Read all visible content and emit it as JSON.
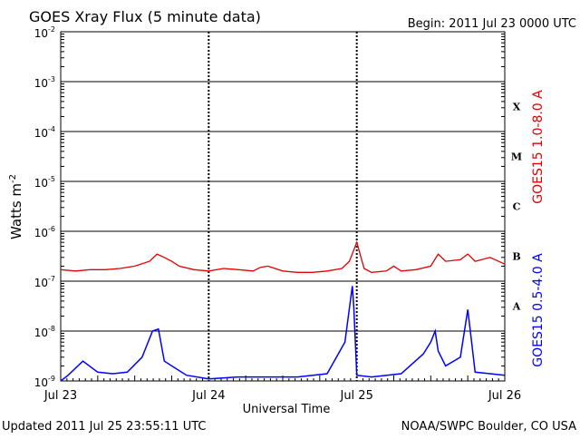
{
  "header": {
    "title": "GOES Xray Flux (5 minute data)",
    "begin": "Begin:  2011 Jul 23 0000 UTC"
  },
  "footer": {
    "updated": "Updated 2011 Jul 25 23:55:11 UTC",
    "source": "NOAA/SWPC Boulder, CO USA"
  },
  "colors": {
    "long_channel": "#e00000",
    "short_channel": "#0000ff",
    "axis": "#000000",
    "gridline": "#000000"
  },
  "chart_data": {
    "type": "line",
    "title": "GOES Xray Flux (5 minute data)",
    "xlabel": "Universal Time",
    "ylabel": "Watts m",
    "ylabel_sup": "-2",
    "yscale": "log",
    "ylim": [
      1e-09,
      0.01
    ],
    "xlim_days": [
      0,
      3
    ],
    "x_unit": "days since 2011 Jul 23 0000 UTC",
    "x_ticks": [
      {
        "value": 0,
        "label": "Jul 23"
      },
      {
        "value": 1,
        "label": "Jul 24"
      },
      {
        "value": 2,
        "label": "Jul 25"
      },
      {
        "value": 3,
        "label": "Jul 26"
      }
    ],
    "y_ticks": [
      {
        "value": 0.01,
        "base": "10",
        "exp": "-2"
      },
      {
        "value": 0.001,
        "base": "10",
        "exp": "-3"
      },
      {
        "value": 0.0001,
        "base": "10",
        "exp": "-4"
      },
      {
        "value": 1e-05,
        "base": "10",
        "exp": "-5"
      },
      {
        "value": 1e-06,
        "base": "10",
        "exp": "-6"
      },
      {
        "value": 1e-07,
        "base": "10",
        "exp": "-7"
      },
      {
        "value": 1e-08,
        "base": "10",
        "exp": "-8"
      },
      {
        "value": 1e-09,
        "base": "10",
        "exp": "-9"
      }
    ],
    "flare_classes": [
      {
        "label": "X",
        "lower": 0.0001,
        "upper": 0.001
      },
      {
        "label": "M",
        "lower": 1e-05,
        "upper": 0.0001
      },
      {
        "label": "C",
        "lower": 1e-06,
        "upper": 1e-05
      },
      {
        "label": "B",
        "lower": 1e-07,
        "upper": 1e-06
      },
      {
        "label": "A",
        "lower": 1e-08,
        "upper": 1e-07
      }
    ],
    "grid": "horizontal lines at each decade; dashed vertical lines at day boundaries",
    "series": [
      {
        "name": "GOES15 1.0-8.0 A",
        "color": "#e00000",
        "x": [
          0,
          0.1,
          0.2,
          0.3,
          0.4,
          0.5,
          0.6,
          0.65,
          0.7,
          0.75,
          0.8,
          0.9,
          1.0,
          1.1,
          1.2,
          1.3,
          1.35,
          1.4,
          1.5,
          1.6,
          1.7,
          1.8,
          1.9,
          1.95,
          2.0,
          2.05,
          2.1,
          2.2,
          2.25,
          2.3,
          2.4,
          2.5,
          2.55,
          2.6,
          2.7,
          2.75,
          2.8,
          2.9,
          3.0
        ],
        "y": [
          1.7e-07,
          1.6e-07,
          1.7e-07,
          1.7e-07,
          1.8e-07,
          2e-07,
          2.5e-07,
          3.5e-07,
          3e-07,
          2.5e-07,
          2e-07,
          1.7e-07,
          1.6e-07,
          1.8e-07,
          1.7e-07,
          1.6e-07,
          1.9e-07,
          2e-07,
          1.6e-07,
          1.5e-07,
          1.5e-07,
          1.6e-07,
          1.8e-07,
          2.5e-07,
          6e-07,
          1.8e-07,
          1.5e-07,
          1.6e-07,
          2e-07,
          1.6e-07,
          1.7e-07,
          2e-07,
          3.5e-07,
          2.5e-07,
          2.7e-07,
          3.5e-07,
          2.5e-07,
          3e-07,
          2.2e-07
        ]
      },
      {
        "name": "GOES15 0.5-4.0 A",
        "color": "#0000ff",
        "x": [
          0,
          0.05,
          0.15,
          0.25,
          0.35,
          0.45,
          0.55,
          0.62,
          0.66,
          0.7,
          0.75,
          0.85,
          1.0,
          1.2,
          1.4,
          1.6,
          1.8,
          1.92,
          1.97,
          1.98,
          2.0,
          2.1,
          2.3,
          2.45,
          2.5,
          2.53,
          2.55,
          2.6,
          2.7,
          2.75,
          2.8,
          2.9,
          3.0
        ],
        "y": [
          1e-09,
          1.3e-09,
          2.5e-09,
          1.5e-09,
          1.4e-09,
          1.5e-09,
          3e-09,
          1e-08,
          1.1e-08,
          2.5e-09,
          2e-09,
          1.3e-09,
          1.1e-09,
          1.2e-09,
          1.2e-09,
          1.2e-09,
          1.4e-09,
          6e-09,
          8e-08,
          3e-08,
          1.3e-09,
          1.2e-09,
          1.4e-09,
          3.5e-09,
          6e-09,
          1e-08,
          4e-09,
          2e-09,
          3e-09,
          2.7e-08,
          1.5e-09,
          1.4e-09,
          1.3e-09
        ]
      }
    ],
    "legend_placement": "right side, rotated vertical labels"
  }
}
